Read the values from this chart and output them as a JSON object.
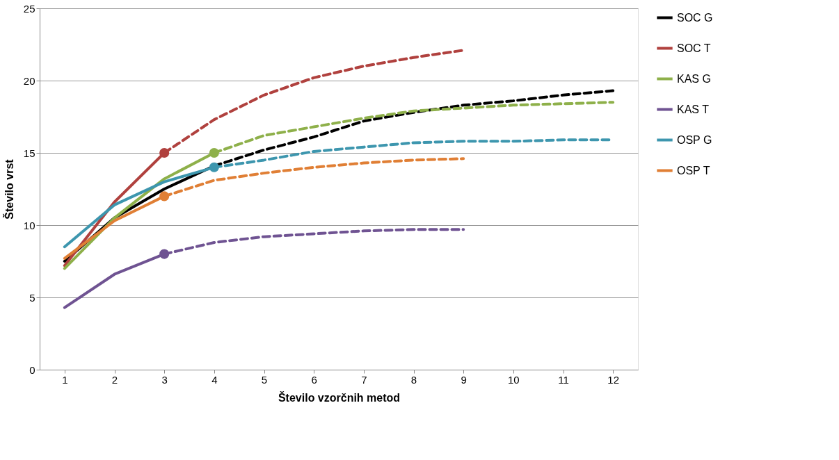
{
  "chart_data": {
    "type": "line",
    "xlabel": "Število vzorčnih metod",
    "ylabel": "Število vrst",
    "xlim": [
      0.5,
      12.5
    ],
    "xticks": [
      1,
      2,
      3,
      4,
      5,
      6,
      7,
      8,
      9,
      10,
      11,
      12
    ],
    "ylim": [
      0,
      25
    ],
    "yticks": [
      0,
      5,
      10,
      15,
      20,
      25
    ],
    "grid": "y",
    "legend": "right",
    "series": [
      {
        "name": "SOC G",
        "color": "#000000",
        "line_style": "solid",
        "x": [
          1,
          2,
          3,
          4
        ],
        "values": [
          7.5,
          10.5,
          12.5,
          14.1
        ]
      },
      {
        "name": "SOC T",
        "color": "#b0413e",
        "line_style": "solid",
        "x": [
          1,
          2,
          3
        ],
        "values": [
          7.2,
          11.6,
          15
        ]
      },
      {
        "name": "KAS G",
        "color": "#8eb04a",
        "line_style": "solid",
        "x": [
          1,
          2,
          3,
          4
        ],
        "values": [
          7.0,
          10.5,
          13.2,
          15
        ]
      },
      {
        "name": "KAS T",
        "color": "#6f5392",
        "line_style": "solid",
        "x": [
          1,
          2,
          3
        ],
        "values": [
          4.3,
          6.6,
          8
        ]
      },
      {
        "name": "OSP G",
        "color": "#3d96ae",
        "line_style": "solid",
        "x": [
          1,
          2,
          3,
          4
        ],
        "values": [
          8.5,
          11.4,
          13.0,
          14.0
        ]
      },
      {
        "name": "OSP T",
        "color": "#e07f35",
        "line_style": "solid",
        "x": [
          1,
          2,
          3
        ],
        "values": [
          7.7,
          10.3,
          12
        ]
      },
      {
        "color": "#000000",
        "line_style": "dashed",
        "x": [
          4,
          5,
          6,
          7,
          8,
          9,
          10,
          11,
          12
        ],
        "values": [
          14.1,
          15.2,
          16.1,
          17.2,
          17.8,
          18.3,
          18.6,
          19.0,
          19.3
        ]
      },
      {
        "color": "#b0413e",
        "line_style": "dashed",
        "x": [
          3,
          4,
          5,
          6,
          7,
          8,
          9
        ],
        "values": [
          15,
          17.3,
          19.0,
          20.2,
          21.0,
          21.6,
          22.1
        ]
      },
      {
        "color": "#8eb04a",
        "line_style": "dashed",
        "x": [
          4,
          5,
          6,
          7,
          8,
          9,
          10,
          11,
          12
        ],
        "values": [
          15,
          16.2,
          16.8,
          17.4,
          17.9,
          18.1,
          18.3,
          18.4,
          18.5
        ]
      },
      {
        "color": "#6f5392",
        "line_style": "dashed",
        "x": [
          3,
          4,
          5,
          6,
          7,
          8,
          9
        ],
        "values": [
          8,
          8.8,
          9.2,
          9.4,
          9.6,
          9.7,
          9.7
        ]
      },
      {
        "color": "#3d96ae",
        "line_style": "dashed",
        "x": [
          4,
          5,
          6,
          7,
          8,
          9,
          10,
          11,
          12
        ],
        "values": [
          14.0,
          14.5,
          15.1,
          15.4,
          15.7,
          15.8,
          15.8,
          15.9,
          15.9
        ]
      },
      {
        "color": "#e07f35",
        "line_style": "dashed",
        "x": [
          3,
          4,
          5,
          6,
          7,
          8,
          9
        ],
        "values": [
          12,
          13.1,
          13.6,
          14.0,
          14.3,
          14.5,
          14.6
        ]
      },
      {
        "type": "scatter",
        "marker": "circle",
        "color": "#b0413e",
        "x": [
          3
        ],
        "values": [
          15
        ]
      },
      {
        "type": "scatter",
        "marker": "circle",
        "color": "#8eb04a",
        "x": [
          4
        ],
        "values": [
          15
        ]
      },
      {
        "type": "scatter",
        "marker": "circle",
        "color": "#6f5392",
        "x": [
          3
        ],
        "values": [
          8
        ]
      },
      {
        "type": "scatter",
        "marker": "circle",
        "color": "#3d96ae",
        "x": [
          4
        ],
        "values": [
          14.0
        ]
      },
      {
        "type": "scatter",
        "marker": "circle",
        "color": "#e07f35",
        "x": [
          3
        ],
        "values": [
          12
        ]
      }
    ]
  }
}
